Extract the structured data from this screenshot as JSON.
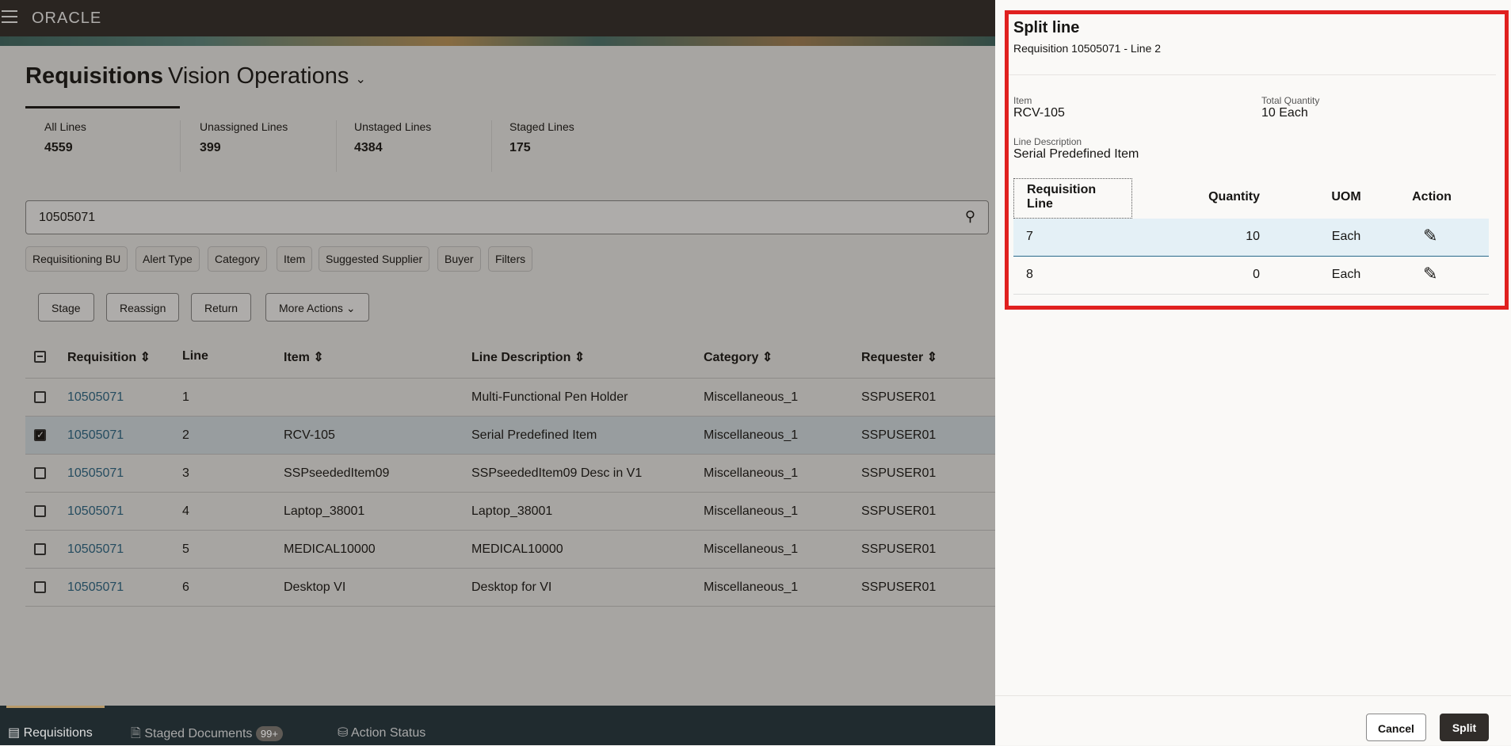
{
  "header": {
    "logo": "ORACLE",
    "menu_icon": "hamburger-icon"
  },
  "page": {
    "title": "Requisitions",
    "business_unit": "Vision Operations"
  },
  "stats": [
    {
      "label": "All Lines",
      "value": "4559"
    },
    {
      "label": "Unassigned Lines",
      "value": "399"
    },
    {
      "label": "Unstaged Lines",
      "value": "4384"
    },
    {
      "label": "Staged Lines",
      "value": "175"
    }
  ],
  "search": {
    "value": "10505071"
  },
  "filters": [
    "Requisitioning BU",
    "Alert Type",
    "Category",
    "Item",
    "Suggested Supplier",
    "Buyer",
    "Filters"
  ],
  "actions": {
    "stage": "Stage",
    "reassign": "Reassign",
    "return": "Return",
    "more": "More Actions"
  },
  "table": {
    "headers": [
      "Requisition",
      "Line",
      "Item",
      "Line Description",
      "Category",
      "Requester"
    ],
    "rows": [
      [
        "10505071",
        "1",
        "",
        "Multi-Functional Pen Holder",
        "Miscellaneous_1",
        "SSPUSER01"
      ],
      [
        "10505071",
        "2",
        "RCV-105",
        "Serial Predefined Item",
        "Miscellaneous_1",
        "SSPUSER01"
      ],
      [
        "10505071",
        "3",
        "SSPseededItem09",
        "SSPseededItem09 Desc in V1",
        "Miscellaneous_1",
        "SSPUSER01"
      ],
      [
        "10505071",
        "4",
        "Laptop_38001",
        "Laptop_38001",
        "Miscellaneous_1",
        "SSPUSER01"
      ],
      [
        "10505071",
        "5",
        "MEDICAL10000",
        "MEDICAL10000",
        "Miscellaneous_1",
        "SSPUSER01"
      ],
      [
        "10505071",
        "6",
        "Desktop VI",
        "Desktop for VI",
        "Miscellaneous_1",
        "SSPUSER01"
      ]
    ],
    "selected_row": 1
  },
  "bottom_nav": {
    "requisitions": "Requisitions",
    "staged": "Staged Documents",
    "staged_badge": "99+",
    "action_status": "Action Status"
  },
  "panel": {
    "title": "Split line",
    "subtitle": "Requisition 10505071 - Line 2",
    "item_label": "Item",
    "item_value": "RCV-105",
    "total_label": "Total Quantity",
    "total_value": "10 Each",
    "desc_label": "Line Description",
    "desc_value": "Serial Predefined Item",
    "headers": [
      "Requisition Line",
      "Quantity",
      "UOM",
      "Action"
    ],
    "rows": [
      [
        "7",
        "10",
        "Each"
      ],
      [
        "8",
        "0",
        "Each"
      ]
    ],
    "cancel": "Cancel",
    "split": "Split",
    "highlight_color": "#e0201f"
  }
}
